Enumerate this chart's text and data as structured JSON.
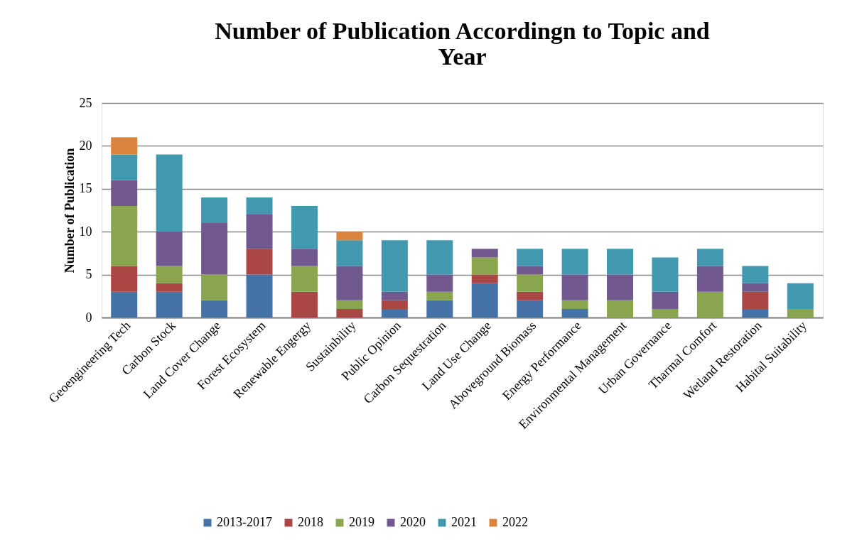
{
  "chart_data": {
    "type": "bar",
    "stacked": true,
    "title": "Number of Publication Accordingn to Topic and Year",
    "ylabel": "Number of Publication",
    "categories": [
      "Geoengineering Tech",
      "Carbon Stock",
      "Land Cover Change",
      "Forest Ecosystem",
      "Renewable Engergy",
      "Sustainbility",
      "Public Opinion",
      "Carbon Sequestration",
      "Land Use Change",
      "Aboveground Biomass",
      "Energy Performance",
      "Environmental Management",
      "Urban Governance",
      "Tharmal Comfort",
      "Wetland Restoration",
      "Habital Suitability"
    ],
    "series": [
      {
        "name": "2013-2017",
        "color": "#4572a7",
        "values": [
          3,
          3,
          2,
          5,
          0,
          0,
          1,
          2,
          4,
          2,
          1,
          0,
          0,
          0,
          1,
          0
        ]
      },
      {
        "name": "2018",
        "color": "#aa4643",
        "values": [
          3,
          1,
          0,
          3,
          3,
          1,
          1,
          0,
          1,
          1,
          0,
          0,
          0,
          0,
          2,
          0
        ]
      },
      {
        "name": "2019",
        "color": "#89a54e",
        "values": [
          7,
          2,
          3,
          0,
          3,
          1,
          0,
          1,
          2,
          2,
          1,
          2,
          1,
          3,
          0,
          1
        ]
      },
      {
        "name": "2020",
        "color": "#71588f",
        "values": [
          3,
          4,
          6,
          4,
          2,
          4,
          1,
          2,
          1,
          1,
          3,
          3,
          2,
          3,
          1,
          0
        ]
      },
      {
        "name": "2021",
        "color": "#4198af",
        "values": [
          3,
          9,
          3,
          2,
          5,
          3,
          6,
          4,
          0,
          2,
          3,
          3,
          4,
          2,
          2,
          3
        ]
      },
      {
        "name": "2022",
        "color": "#db843d",
        "values": [
          2,
          0,
          0,
          0,
          0,
          1,
          0,
          0,
          0,
          0,
          0,
          0,
          0,
          0,
          0,
          0
        ]
      }
    ],
    "ylim": [
      0,
      25
    ],
    "yticks": [
      0,
      5,
      10,
      15,
      20,
      25
    ],
    "grid": "y",
    "legend": "bottom"
  }
}
